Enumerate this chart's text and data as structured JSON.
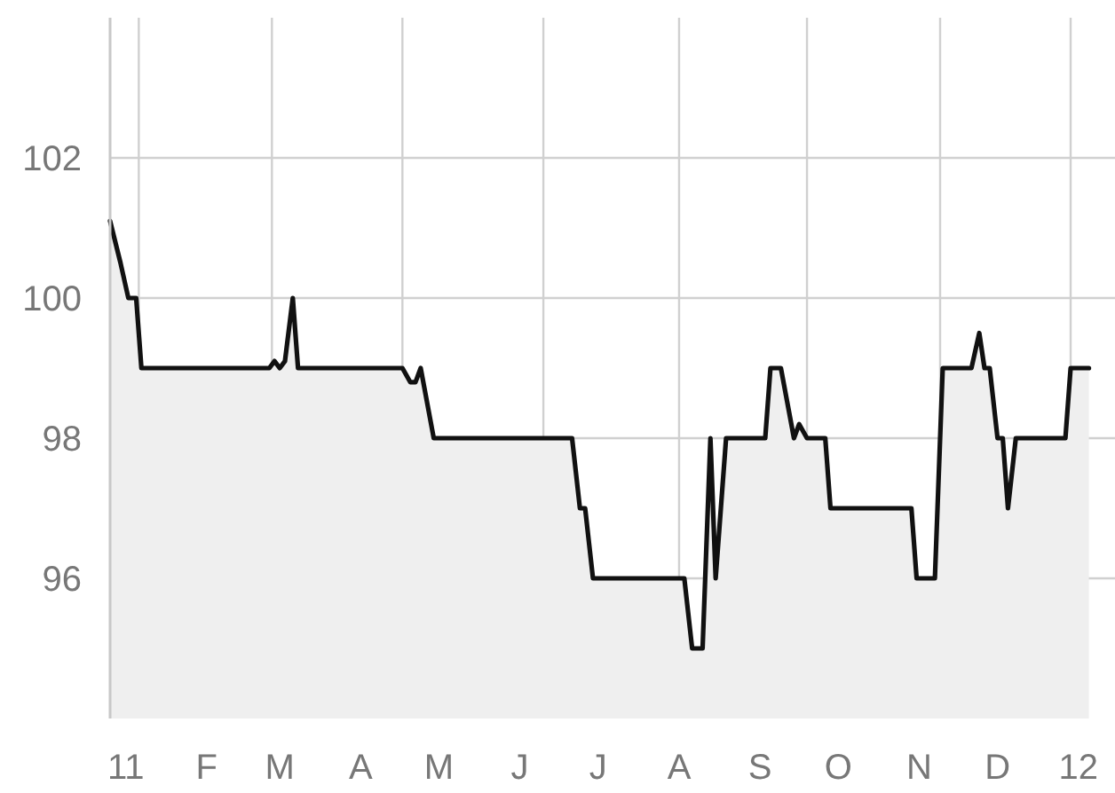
{
  "chart_data": {
    "type": "area",
    "x": [
      "2010-12-26",
      "2010-12-30",
      "2011-01-02",
      "2011-01-05",
      "2011-01-07",
      "2011-02-25",
      "2011-02-27",
      "2011-03-01",
      "2011-03-03",
      "2011-03-06",
      "2011-03-08",
      "2011-04-17",
      "2011-04-20",
      "2011-04-22",
      "2011-04-24",
      "2011-04-29",
      "2011-06-21",
      "2011-06-24",
      "2011-06-26",
      "2011-06-29",
      "2011-08-03",
      "2011-08-06",
      "2011-08-10",
      "2011-08-13",
      "2011-08-15",
      "2011-08-19",
      "2011-09-03",
      "2011-09-05",
      "2011-09-09",
      "2011-09-14",
      "2011-09-16",
      "2011-09-19",
      "2011-09-26",
      "2011-09-28",
      "2011-10-29",
      "2011-10-31",
      "2011-11-07",
      "2011-11-10",
      "2011-11-21",
      "2011-11-24",
      "2011-11-26",
      "2011-11-28",
      "2011-12-01",
      "2011-12-03",
      "2011-12-05",
      "2011-12-08",
      "2011-12-27",
      "2011-12-29",
      "2012-01-05"
    ],
    "series": [
      {
        "color": "#111111",
        "values": [
          101.1,
          100.5,
          100,
          100,
          99,
          99,
          99.1,
          99,
          99.1,
          100,
          99,
          99,
          98.8,
          98.8,
          99,
          98,
          98,
          97,
          97,
          96,
          96,
          95,
          95,
          98,
          96,
          98,
          98,
          99,
          99,
          98,
          98.2,
          98,
          98,
          97,
          97,
          96,
          96,
          99,
          99,
          99.5,
          99,
          99,
          98,
          98,
          97,
          98,
          98,
          99,
          99
        ]
      }
    ],
    "xlim": [
      "2010-12-26",
      "2012-01-15"
    ],
    "xticks": [
      {
        "value": "2011-01-01",
        "label": "11"
      },
      {
        "value": "2011-02-01",
        "label": "F"
      },
      {
        "value": "2011-03-01",
        "label": "M"
      },
      {
        "value": "2011-04-01",
        "label": "A"
      },
      {
        "value": "2011-05-01",
        "label": "M"
      },
      {
        "value": "2011-06-01",
        "label": "J"
      },
      {
        "value": "2011-07-01",
        "label": "J"
      },
      {
        "value": "2011-08-01",
        "label": "A"
      },
      {
        "value": "2011-09-01",
        "label": "S"
      },
      {
        "value": "2011-10-01",
        "label": "O"
      },
      {
        "value": "2011-11-01",
        "label": "N"
      },
      {
        "value": "2011-12-01",
        "label": "D"
      },
      {
        "value": "2012-01-01",
        "label": "12"
      },
      {
        "value": "2011-01-06",
        "label": null
      },
      {
        "value": "2011-02-26",
        "label": null
      },
      {
        "value": "2011-04-17",
        "label": null
      },
      {
        "value": "2011-06-10",
        "label": null
      },
      {
        "value": "2011-08-01",
        "label": null
      },
      {
        "value": "2011-09-19",
        "label": null
      },
      {
        "value": "2011-11-09",
        "label": null
      },
      {
        "value": "2011-12-29",
        "label": null
      }
    ],
    "ylim": [
      94,
      104
    ],
    "yticks": [
      96,
      98,
      100,
      102
    ],
    "grid": true
  }
}
